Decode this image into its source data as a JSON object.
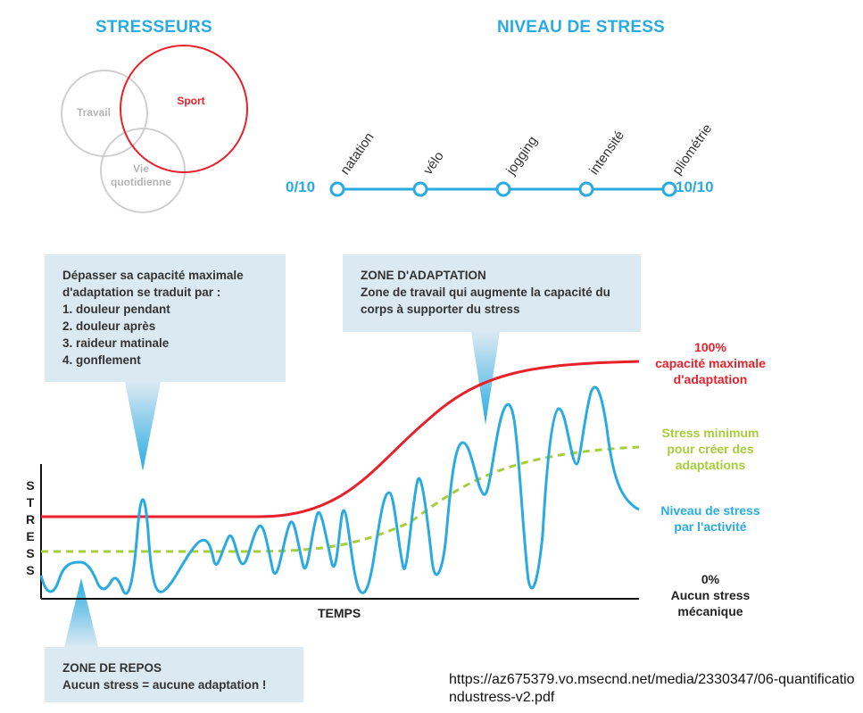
{
  "stressors": {
    "title": "STRESSEURS",
    "items": [
      "Travail",
      "Sport",
      "Vie quotidienne"
    ]
  },
  "stress_level": {
    "title": "NIVEAU DE STRESS",
    "min_label": "0/10",
    "max_label": "10/10",
    "activities": [
      "natation",
      "vélo",
      "jogging",
      "intensité",
      "pliométrie"
    ]
  },
  "callouts": {
    "overload": {
      "intro": "Dépasser sa capacité maximale d'adaptation se traduit par :",
      "items": [
        "1.  douleur pendant",
        "2. douleur après",
        "3. raideur matinale",
        "4. gonflement"
      ]
    },
    "adaptation": {
      "title": "ZONE D'ADAPTATION",
      "text": "Zone de travail qui augmente la capacité du corps à supporter du stress"
    },
    "rest": {
      "title": "ZONE DE REPOS",
      "text": "Aucun stress = aucune adaptation !"
    }
  },
  "graph": {
    "y_axis_label": "STRESS",
    "x_axis_label": "TEMPS",
    "max_capacity": {
      "line1": "100%",
      "line2": "capacité maximale",
      "line3": "d'adaptation"
    },
    "min_stress": {
      "line1": "Stress minimum",
      "line2": "pour créer des",
      "line3": "adaptations"
    },
    "activity_level": {
      "line1": "Niveau de stress",
      "line2": "par l'activité"
    },
    "zero": {
      "line1": "0%",
      "line2": "Aucun stress",
      "line3": "mécanique"
    }
  },
  "source": "https://az675379.vo.msecnd.net/media/2330347/06-quantificationdustress-v2.pdf",
  "colors": {
    "blue": "#29abe2",
    "red": "#e8202a",
    "green": "#a6ce39",
    "grey": "#cccccc",
    "box": "#dbe9f2"
  }
}
